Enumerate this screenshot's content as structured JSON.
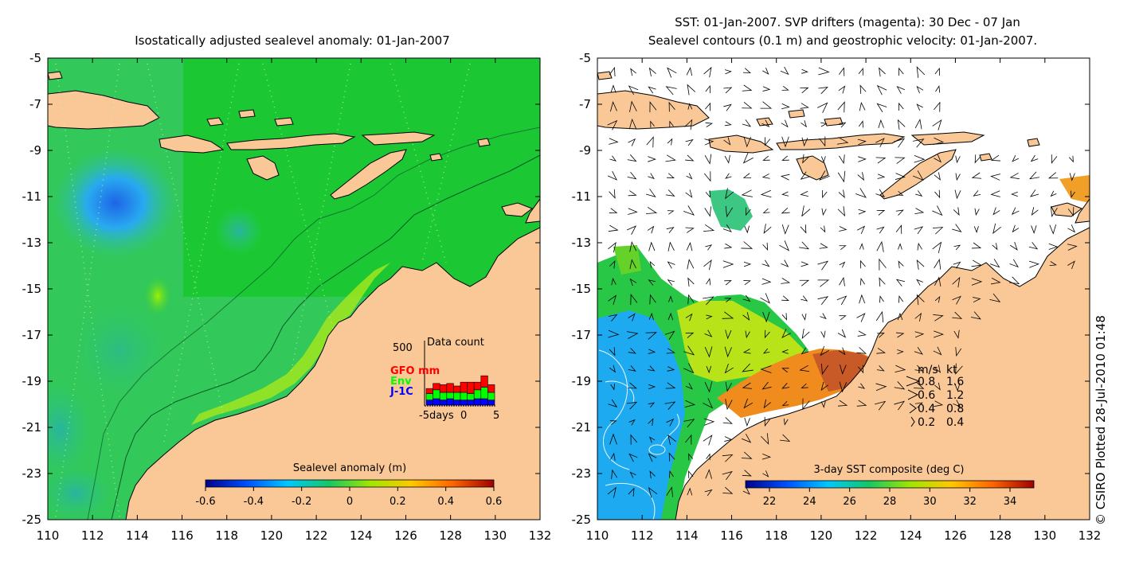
{
  "left_panel": {
    "title": "Isostatically adjusted sealevel anomaly: 01-Jan-2007",
    "colorbar": {
      "title": "Sealevel anomaly (m)",
      "ticks": [
        "-0.6",
        "-0.4",
        "-0.2",
        "0",
        "0.2",
        "0.4",
        "0.6"
      ],
      "stops": [
        "#00008c",
        "#0050ff",
        "#00c8ff",
        "#14c864",
        "#a0e600",
        "#ffc800",
        "#ff6400",
        "#a00000"
      ]
    },
    "data_count": {
      "title": "Data count",
      "y_max_label": "500",
      "legend": [
        {
          "label": "GFO mm",
          "color": "#ff0000"
        },
        {
          "label": "Env",
          "color": "#00ff00"
        },
        {
          "label": "J-1C",
          "color": "#0000ff"
        }
      ],
      "x_labels": [
        "-5days",
        "0",
        "5"
      ],
      "bars": [
        {
          "day": -5,
          "gfo": 0.08,
          "env": 0.1,
          "j1c": 0.08
        },
        {
          "day": -4,
          "gfo": 0.1,
          "env": 0.14,
          "j1c": 0.1
        },
        {
          "day": -3,
          "gfo": 0.12,
          "env": 0.12,
          "j1c": 0.08
        },
        {
          "day": -2,
          "gfo": 0.14,
          "env": 0.1,
          "j1c": 0.1
        },
        {
          "day": -1,
          "gfo": 0.1,
          "env": 0.12,
          "j1c": 0.08
        },
        {
          "day": 0,
          "gfo": 0.16,
          "env": 0.12,
          "j1c": 0.08
        },
        {
          "day": 1,
          "gfo": 0.18,
          "env": 0.1,
          "j1c": 0.08
        },
        {
          "day": 2,
          "gfo": 0.12,
          "env": 0.14,
          "j1c": 0.1
        },
        {
          "day": 3,
          "gfo": 0.18,
          "env": 0.18,
          "j1c": 0.1
        },
        {
          "day": 4,
          "gfo": 0.12,
          "env": 0.12,
          "j1c": 0.08
        }
      ]
    }
  },
  "right_panel": {
    "title_line1": "SST: 01-Jan-2007. SVP drifters (magenta): 30 Dec - 07 Jan",
    "title_line2": "Sealevel contours (0.1 m) and geostrophic velocity: 01-Jan-2007.",
    "colorbar": {
      "title": "3-day SST composite (deg C)",
      "ticks": [
        "22",
        "24",
        "26",
        "28",
        "30",
        "32",
        "34"
      ],
      "stops": [
        "#00008c",
        "#0050ff",
        "#00c8ff",
        "#14c864",
        "#a0e600",
        "#ffc800",
        "#ff6400",
        "#a00000"
      ]
    },
    "velocity_legend": {
      "header_ms": "m/s",
      "header_kt": "kt",
      "rows": [
        {
          "ms": "0.8",
          "kt": "1.6"
        },
        {
          "ms": "0.6",
          "kt": "1.2"
        },
        {
          "ms": "0.4",
          "kt": "0.8"
        },
        {
          "ms": "0.2",
          "kt": "0.4"
        }
      ]
    }
  },
  "axes": {
    "lon_labels": [
      "110",
      "112",
      "114",
      "116",
      "118",
      "120",
      "122",
      "124",
      "126",
      "128",
      "130",
      "132"
    ],
    "lat_labels": [
      "-5",
      "-7",
      "-9",
      "-11",
      "-13",
      "-15",
      "-17",
      "-19",
      "-21",
      "-23",
      "-25"
    ]
  },
  "credit": "© CSIRO Plotted 28-Jul-2010 01:48",
  "colors": {
    "land": "#fac896",
    "ocean_green": "#14c828",
    "ocean_mid": "#32c85a",
    "shelf_green": "#3cd23c"
  }
}
